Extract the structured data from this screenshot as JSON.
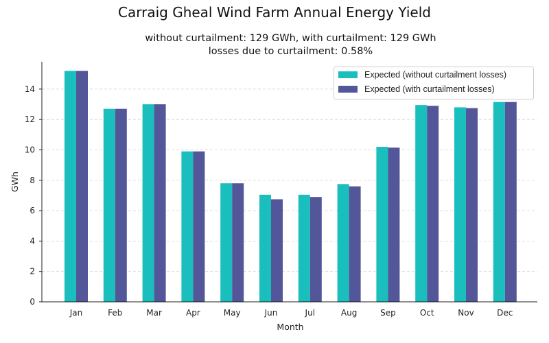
{
  "chart_data": {
    "type": "bar",
    "title": "Carraig Gheal Wind Farm Annual Energy Yield",
    "subtitle_lines": [
      "without curtailment: 129 GWh, with curtailment: 129 GWh",
      "losses due to curtailment: 0.58%"
    ],
    "xlabel": "Month",
    "ylabel": "GWh",
    "ylim": [
      0,
      15.8
    ],
    "yticks": [
      0,
      2,
      4,
      6,
      8,
      10,
      12,
      14
    ],
    "grid": "horizontal dashed",
    "legend_position": "top-right",
    "categories": [
      "Jan",
      "Feb",
      "Mar",
      "Apr",
      "May",
      "Jun",
      "Jul",
      "Aug",
      "Sep",
      "Oct",
      "Nov",
      "Dec"
    ],
    "series": [
      {
        "name": "Expected (without curtailment losses)",
        "color": "#1abfbd",
        "values": [
          15.2,
          12.7,
          13.0,
          9.9,
          7.8,
          7.05,
          7.05,
          7.75,
          10.2,
          12.95,
          12.8,
          13.15
        ]
      },
      {
        "name": "Expected (with curtailment losses)",
        "color": "#53579a",
        "values": [
          15.2,
          12.7,
          13.0,
          9.9,
          7.8,
          6.75,
          6.9,
          7.6,
          10.15,
          12.9,
          12.75,
          13.15
        ]
      }
    ]
  }
}
